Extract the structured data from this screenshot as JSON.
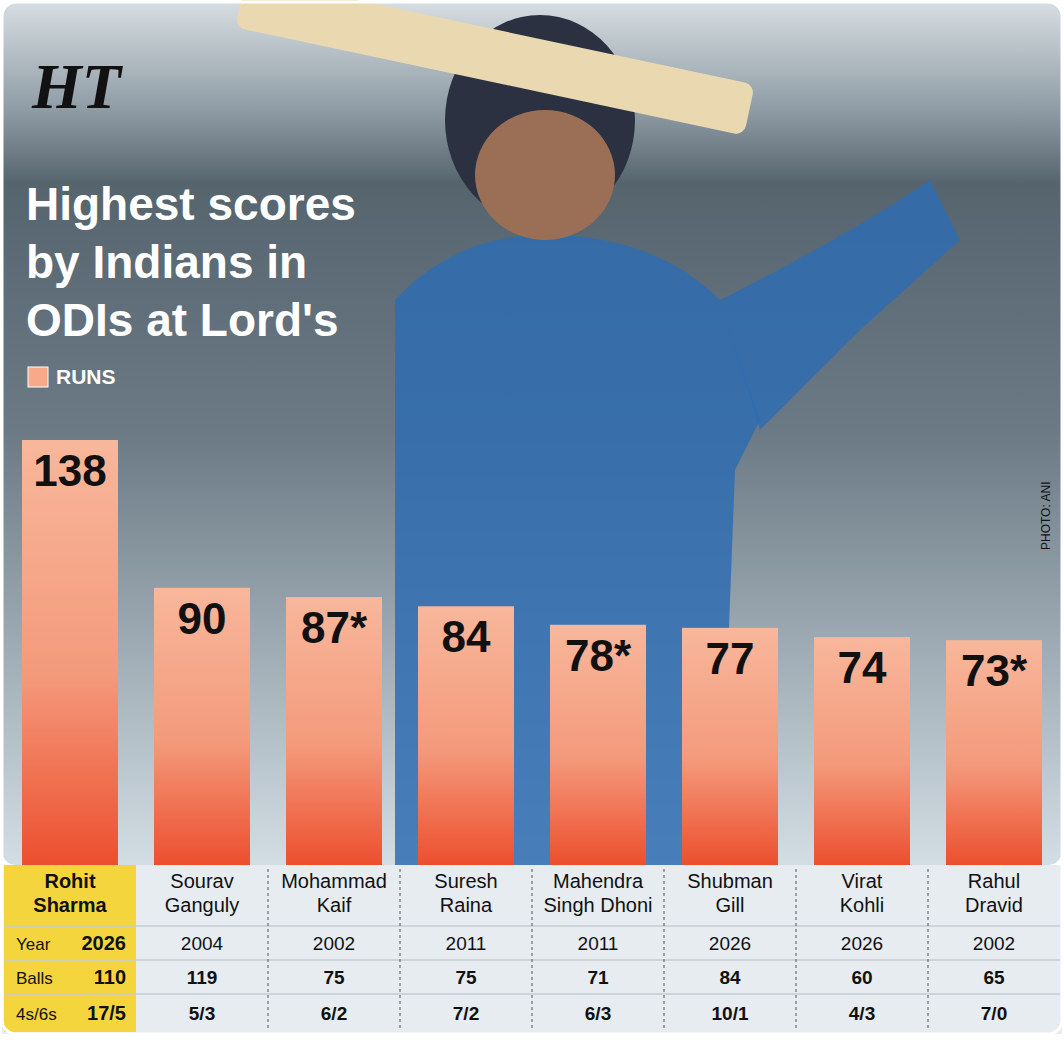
{
  "chart_data": {
    "type": "bar",
    "title": "Highest scores by Indians in ODIs at Lord's",
    "categories": [
      "Rohit Sharma",
      "Sourav Ganguly",
      "Mohammad Kaif",
      "Suresh Raina",
      "Mahendra Singh Dhoni",
      "Shubman Gill",
      "Virat Kohli",
      "Rahul Dravid"
    ],
    "series": [
      {
        "name": "RUNS",
        "color": "#ec4f2e",
        "values": [
          138,
          90,
          87,
          84,
          78,
          77,
          74,
          73
        ],
        "value_labels": [
          "138",
          "90",
          "87*",
          "84",
          "78*",
          "77",
          "74",
          "73*"
        ]
      }
    ],
    "ylim": [
      0,
      138
    ],
    "tick_labels": false,
    "data_labels": true,
    "legend": "top-left",
    "grid": false
  },
  "table": {
    "rows": [
      {
        "label": "Year",
        "values": [
          2026,
          2004,
          2002,
          2011,
          2011,
          2026,
          2026,
          2002
        ]
      },
      {
        "label": "Balls",
        "values": [
          110,
          119,
          75,
          75,
          71,
          84,
          60,
          65
        ]
      },
      {
        "label": "4s/6s",
        "values": [
          "17/5",
          "5/3",
          "6/2",
          "7/2",
          "6/3",
          "10/1",
          "4/3",
          "7/0"
        ]
      }
    ]
  },
  "logo": "HT",
  "credit": "PHOTO: ANI"
}
